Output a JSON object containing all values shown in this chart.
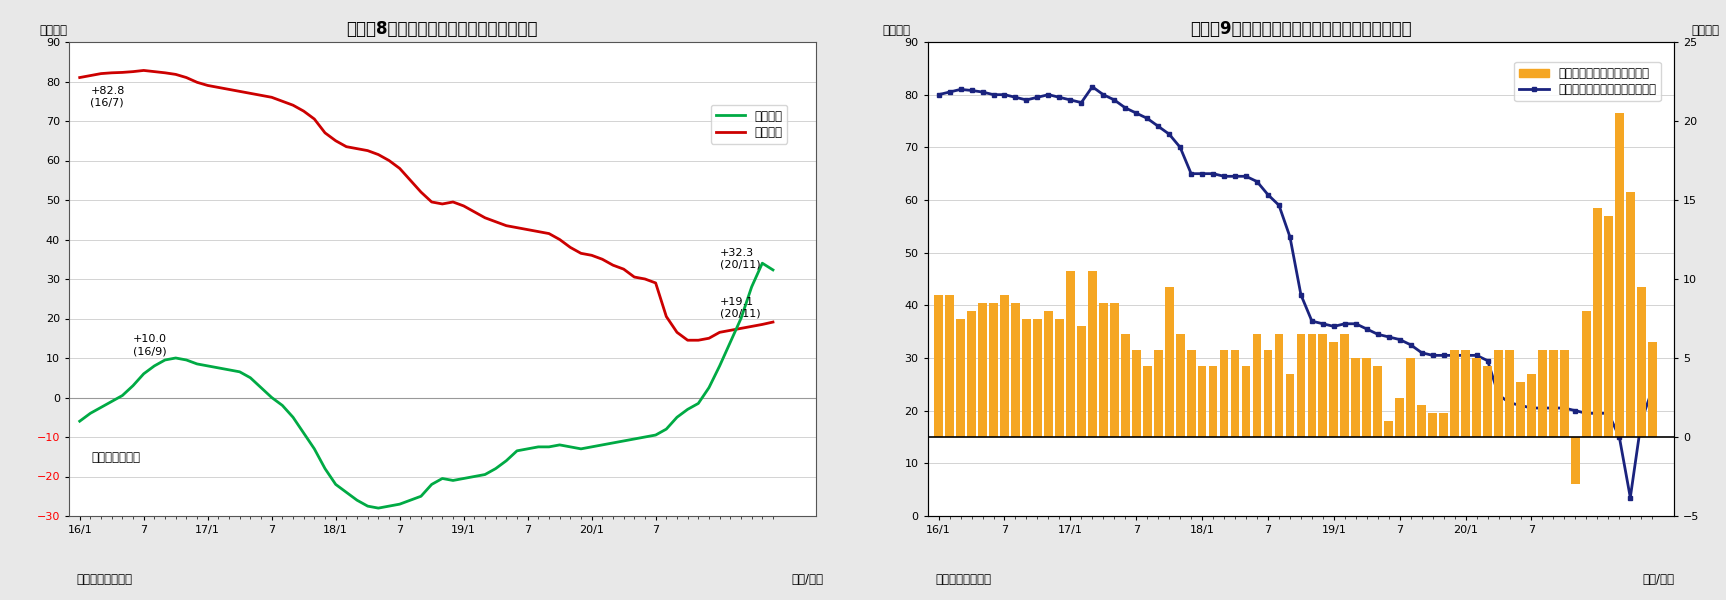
{
  "chart8": {
    "title": "（図表8）日銀国債保有残高の前年比増減",
    "ylabel_left": "（兆円）",
    "xlabel": "（年/月）",
    "source": "（資料）日本銀行",
    "note": "（月末ベース）",
    "ylim": [
      -30,
      90
    ],
    "yticks": [
      -30,
      -20,
      -10,
      0,
      10,
      20,
      30,
      40,
      50,
      60,
      70,
      80,
      90
    ],
    "xtick_labels": [
      "16/1",
      "7",
      "17/1",
      "7",
      "18/1",
      "7",
      "19/1",
      "7",
      "20/1",
      "7"
    ],
    "xtick_positions": [
      0,
      6,
      12,
      18,
      24,
      30,
      36,
      42,
      48,
      54
    ],
    "long_bond_color": "#cc0000",
    "short_bond_color": "#00aa44",
    "legend_short": "短期国債",
    "legend_long": "長期国債",
    "long_bond_data": [
      81.0,
      81.5,
      82.0,
      82.2,
      82.3,
      82.5,
      82.8,
      82.5,
      82.2,
      81.8,
      81.0,
      79.8,
      79.0,
      78.5,
      78.0,
      77.5,
      77.0,
      76.5,
      76.0,
      75.0,
      74.0,
      72.5,
      70.5,
      67.0,
      65.0,
      63.5,
      63.0,
      62.5,
      61.5,
      60.0,
      58.0,
      55.0,
      52.0,
      49.5,
      49.0,
      49.5,
      48.5,
      47.0,
      45.5,
      44.5,
      43.5,
      43.0,
      42.5,
      42.0,
      41.5,
      40.0,
      38.0,
      36.5,
      36.0,
      35.0,
      33.5,
      32.5,
      30.5,
      30.0,
      29.0,
      20.5,
      16.5,
      14.5,
      14.5,
      15.0,
      16.5,
      17.0,
      17.5,
      18.0,
      18.5,
      19.1
    ],
    "short_bond_data": [
      -6.0,
      -4.0,
      -2.5,
      -1.0,
      0.5,
      3.0,
      6.0,
      8.0,
      9.5,
      10.0,
      9.5,
      8.5,
      8.0,
      7.5,
      7.0,
      6.5,
      5.0,
      2.5,
      0.0,
      -2.0,
      -5.0,
      -9.0,
      -13.0,
      -18.0,
      -22.0,
      -24.0,
      -26.0,
      -27.5,
      -28.0,
      -27.5,
      -27.0,
      -26.0,
      -25.0,
      -22.0,
      -20.5,
      -21.0,
      -20.5,
      -20.0,
      -19.5,
      -18.0,
      -16.0,
      -13.5,
      -13.0,
      -12.5,
      -12.5,
      -12.0,
      -12.5,
      -13.0,
      -12.5,
      -12.0,
      -11.5,
      -11.0,
      -10.5,
      -10.0,
      -9.5,
      -8.0,
      -5.0,
      -3.0,
      -1.5,
      2.5,
      8.0,
      14.0,
      20.0,
      28.0,
      34.0,
      32.3
    ]
  },
  "chart9": {
    "title": "（図表9）マネタリーベース残高と前月比の推移",
    "ylabel_left": "（兆円）",
    "ylabel_right": "（兆円）",
    "xlabel": "（年/月）",
    "source": "（資料）日本銀行",
    "ylim_left": [
      0,
      90
    ],
    "ylim_right": [
      -5,
      25
    ],
    "yticks_left": [
      0,
      10,
      20,
      30,
      40,
      50,
      60,
      70,
      80,
      90
    ],
    "yticks_right": [
      -5,
      0,
      5,
      10,
      15,
      20,
      25
    ],
    "xtick_labels": [
      "16/1",
      "7",
      "17/1",
      "7",
      "18/1",
      "7",
      "19/1",
      "7",
      "20/1",
      "7"
    ],
    "xtick_positions": [
      0,
      6,
      12,
      18,
      24,
      30,
      36,
      42,
      48,
      54
    ],
    "bar_color": "#f5a623",
    "line_color": "#1a237e",
    "legend_bar": "季節調整済み前月差（右軸）",
    "legend_line": "マネタリーベース末残の前年差",
    "monetary_base_yoy": [
      80.0,
      80.5,
      81.0,
      80.8,
      80.5,
      80.0,
      80.0,
      79.5,
      79.0,
      79.5,
      80.0,
      79.5,
      79.0,
      78.5,
      81.5,
      80.0,
      79.0,
      77.5,
      76.5,
      75.5,
      74.0,
      72.5,
      70.0,
      65.0,
      65.0,
      65.0,
      64.5,
      64.5,
      64.5,
      63.5,
      61.0,
      59.0,
      53.0,
      42.0,
      37.0,
      36.5,
      36.0,
      36.5,
      36.5,
      35.5,
      34.5,
      34.0,
      33.5,
      32.5,
      31.0,
      30.5,
      30.5,
      30.5,
      30.5,
      30.5,
      29.5,
      23.0,
      21.5,
      21.0,
      20.5,
      20.5,
      20.5,
      20.5,
      20.0,
      19.5,
      19.5,
      19.5,
      15.0,
      3.5,
      18.0,
      24.0
    ],
    "mom_diff_right": [
      9.0,
      9.0,
      7.5,
      8.0,
      8.5,
      8.5,
      9.0,
      8.5,
      7.5,
      7.5,
      8.0,
      7.5,
      10.5,
      7.0,
      10.5,
      8.5,
      8.5,
      6.5,
      5.5,
      4.5,
      5.5,
      9.5,
      6.5,
      5.5,
      4.5,
      4.5,
      5.5,
      5.5,
      4.5,
      6.5,
      5.5,
      6.5,
      4.0,
      6.5,
      6.5,
      6.5,
      6.0,
      6.5,
      5.0,
      5.0,
      4.5,
      1.0,
      2.5,
      5.0,
      2.0,
      1.5,
      1.5,
      5.5,
      5.5,
      5.0,
      4.5,
      5.5,
      5.5,
      3.5,
      4.0,
      5.5,
      5.5,
      5.5,
      -3.0,
      8.0,
      14.5,
      14.0,
      20.5,
      15.5,
      9.5,
      6.0
    ]
  },
  "background_color": "#e8e8e8",
  "panel_background": "#ffffff",
  "grid_color": "#cccccc",
  "title_fontsize": 12,
  "label_fontsize": 8.5,
  "tick_fontsize": 8,
  "annotation_fontsize": 8
}
